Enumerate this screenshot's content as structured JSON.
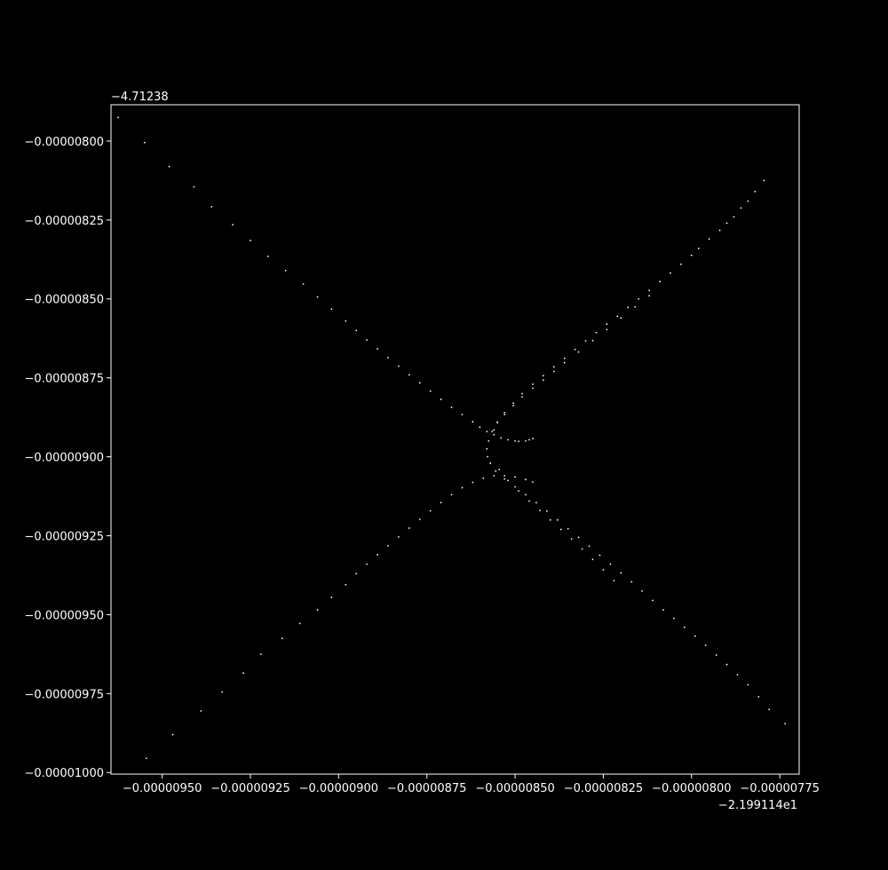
{
  "chart_data": {
    "type": "scatter",
    "title": "",
    "xlabel": "",
    "ylabel": "",
    "background_color": "#000000",
    "foreground_color": "#ffffff",
    "point_color": "#ffffff",
    "grid": false,
    "x_offset_label": "−2.199114e1",
    "y_offset_label": "−4.71238",
    "xlim": [
      -9.645e-06,
      -7.695e-06
    ],
    "ylim": [
      -1.0005e-05,
      -7.885e-06
    ],
    "x_ticks": [
      {
        "value": -9.5e-06,
        "label": "−0.00000950"
      },
      {
        "value": -9.25e-06,
        "label": "−0.00000925"
      },
      {
        "value": -9e-06,
        "label": "−0.00000900"
      },
      {
        "value": -8.75e-06,
        "label": "−0.00000875"
      },
      {
        "value": -8.5e-06,
        "label": "−0.00000850"
      },
      {
        "value": -8.25e-06,
        "label": "−0.00000825"
      },
      {
        "value": -8e-06,
        "label": "−0.00000800"
      },
      {
        "value": -7.75e-06,
        "label": "−0.00000775"
      }
    ],
    "y_ticks": [
      {
        "value": -8e-06,
        "label": "−0.00000800"
      },
      {
        "value": -8.25e-06,
        "label": "−0.00000825"
      },
      {
        "value": -8.5e-06,
        "label": "−0.00000850"
      },
      {
        "value": -8.75e-06,
        "label": "−0.00000875"
      },
      {
        "value": -9e-06,
        "label": "−0.00000900"
      },
      {
        "value": -9.25e-06,
        "label": "−0.00000925"
      },
      {
        "value": -9.5e-06,
        "label": "−0.00000950"
      },
      {
        "value": -9.75e-06,
        "label": "−0.00000975"
      },
      {
        "value": -1e-05,
        "label": "−0.00001000"
      }
    ],
    "series": [
      {
        "description": "upper-left branch",
        "points": [
          [
            -9.625e-06,
            -7.925e-06
          ],
          [
            -9.55e-06,
            -8.005e-06
          ],
          [
            -9.48e-06,
            -8.081e-06
          ],
          [
            -9.41e-06,
            -8.145e-06
          ],
          [
            -9.36e-06,
            -8.208e-06
          ],
          [
            -9.3e-06,
            -8.265e-06
          ],
          [
            -9.25e-06,
            -8.315e-06
          ],
          [
            -9.2e-06,
            -8.365e-06
          ],
          [
            -9.15e-06,
            -8.41e-06
          ],
          [
            -9.1e-06,
            -8.453e-06
          ],
          [
            -9.06e-06,
            -8.494e-06
          ],
          [
            -9.02e-06,
            -8.532e-06
          ],
          [
            -8.98e-06,
            -8.57e-06
          ],
          [
            -8.95e-06,
            -8.6e-06
          ],
          [
            -8.92e-06,
            -8.63e-06
          ],
          [
            -8.89e-06,
            -8.658e-06
          ],
          [
            -8.86e-06,
            -8.686e-06
          ],
          [
            -8.83e-06,
            -8.713e-06
          ],
          [
            -8.8e-06,
            -8.74e-06
          ],
          [
            -8.77e-06,
            -8.766e-06
          ],
          [
            -8.74e-06,
            -8.792e-06
          ],
          [
            -8.71e-06,
            -8.818e-06
          ],
          [
            -8.68e-06,
            -8.843e-06
          ],
          [
            -8.65e-06,
            -8.866e-06
          ],
          [
            -8.62e-06,
            -8.889e-06
          ],
          [
            -8.6e-06,
            -8.906e-06
          ],
          [
            -8.58e-06,
            -8.92e-06
          ],
          [
            -8.56e-06,
            -8.93e-06
          ],
          [
            -8.54e-06,
            -8.94e-06
          ],
          [
            -8.52e-06,
            -8.946e-06
          ],
          [
            -8.5e-06,
            -8.95e-06
          ],
          [
            -8.49e-06,
            -8.951e-06
          ],
          [
            -8.47e-06,
            -8.95e-06
          ],
          [
            -8.46e-06,
            -8.946e-06
          ],
          [
            -8.45e-06,
            -8.942e-06
          ]
        ]
      },
      {
        "description": "upper-right branch",
        "points": [
          [
            -7.795e-06,
            -8.125e-06
          ],
          [
            -7.82e-06,
            -8.16e-06
          ],
          [
            -7.84e-06,
            -8.19e-06
          ],
          [
            -7.86e-06,
            -8.212e-06
          ],
          [
            -7.88e-06,
            -8.24e-06
          ],
          [
            -7.9e-06,
            -8.26e-06
          ],
          [
            -7.92e-06,
            -8.283e-06
          ],
          [
            -7.95e-06,
            -8.31e-06
          ],
          [
            -7.98e-06,
            -8.34e-06
          ],
          [
            -8e-06,
            -8.362e-06
          ],
          [
            -8.03e-06,
            -8.39e-06
          ],
          [
            -8.06e-06,
            -8.418e-06
          ],
          [
            -8.09e-06,
            -8.445e-06
          ],
          [
            -8.12e-06,
            -8.473e-06
          ],
          [
            -8.15e-06,
            -8.5e-06
          ],
          [
            -8.18e-06,
            -8.527e-06
          ],
          [
            -8.21e-06,
            -8.555e-06
          ],
          [
            -8.24e-06,
            -8.58e-06
          ],
          [
            -8.27e-06,
            -8.607e-06
          ],
          [
            -8.3e-06,
            -8.633e-06
          ],
          [
            -8.33e-06,
            -8.66e-06
          ],
          [
            -8.36e-06,
            -8.688e-06
          ],
          [
            -8.39e-06,
            -8.715e-06
          ],
          [
            -8.42e-06,
            -8.743e-06
          ],
          [
            -8.45e-06,
            -8.77e-06
          ],
          [
            -8.48e-06,
            -8.8e-06
          ],
          [
            -8.505e-06,
            -8.83e-06
          ],
          [
            -8.53e-06,
            -8.86e-06
          ],
          [
            -8.55e-06,
            -8.89e-06
          ],
          [
            -8.565e-06,
            -8.92e-06
          ],
          [
            -8.575e-06,
            -8.95e-06
          ],
          [
            -8.58e-06,
            -8.975e-06
          ],
          [
            -8.578e-06,
            -9e-06
          ],
          [
            -8.57e-06,
            -9.02e-06
          ]
        ]
      },
      {
        "description": "upper-right inner branch",
        "points": [
          [
            -8.12e-06,
            -8.49e-06
          ],
          [
            -8.16e-06,
            -8.525e-06
          ],
          [
            -8.2e-06,
            -8.56e-06
          ],
          [
            -8.24e-06,
            -8.597e-06
          ],
          [
            -8.28e-06,
            -8.632e-06
          ],
          [
            -8.32e-06,
            -8.668e-06
          ],
          [
            -8.36e-06,
            -8.702e-06
          ],
          [
            -8.39e-06,
            -8.73e-06
          ],
          [
            -8.42e-06,
            -8.757e-06
          ],
          [
            -8.45e-06,
            -8.783e-06
          ],
          [
            -8.48e-06,
            -8.81e-06
          ],
          [
            -8.505e-06,
            -8.838e-06
          ],
          [
            -8.53e-06,
            -8.866e-06
          ],
          [
            -8.55e-06,
            -8.892e-06
          ],
          [
            -8.56e-06,
            -8.915e-06
          ]
        ]
      },
      {
        "description": "lower-left branch",
        "points": [
          [
            -9.545e-06,
            -9.955e-06
          ],
          [
            -9.47e-06,
            -9.88e-06
          ],
          [
            -9.39e-06,
            -9.805e-06
          ],
          [
            -9.33e-06,
            -9.745e-06
          ],
          [
            -9.27e-06,
            -9.685e-06
          ],
          [
            -9.22e-06,
            -9.625e-06
          ],
          [
            -9.16e-06,
            -9.575e-06
          ],
          [
            -9.11e-06,
            -9.528e-06
          ],
          [
            -9.06e-06,
            -9.485e-06
          ],
          [
            -9.02e-06,
            -9.445e-06
          ],
          [
            -8.98e-06,
            -9.405e-06
          ],
          [
            -8.95e-06,
            -9.37e-06
          ],
          [
            -8.92e-06,
            -9.34e-06
          ],
          [
            -8.89e-06,
            -9.31e-06
          ],
          [
            -8.86e-06,
            -9.282e-06
          ],
          [
            -8.83e-06,
            -9.254e-06
          ],
          [
            -8.8e-06,
            -9.226e-06
          ],
          [
            -8.77e-06,
            -9.198e-06
          ],
          [
            -8.74e-06,
            -9.171e-06
          ],
          [
            -8.71e-06,
            -9.145e-06
          ],
          [
            -8.68e-06,
            -9.12e-06
          ],
          [
            -8.65e-06,
            -9.098e-06
          ],
          [
            -8.62e-06,
            -9.081e-06
          ],
          [
            -8.59e-06,
            -9.068e-06
          ],
          [
            -8.56e-06,
            -9.06e-06
          ],
          [
            -8.53e-06,
            -9.06e-06
          ],
          [
            -8.5e-06,
            -9.064e-06
          ],
          [
            -8.47e-06,
            -9.072e-06
          ],
          [
            -8.45e-06,
            -9.08e-06
          ]
        ]
      },
      {
        "description": "lower-right branch",
        "points": [
          [
            -8.57e-06,
            -9.02e-06
          ],
          [
            -8.555e-06,
            -9.045e-06
          ],
          [
            -8.53e-06,
            -9.07e-06
          ],
          [
            -8.5e-06,
            -9.095e-06
          ],
          [
            -8.47e-06,
            -9.12e-06
          ],
          [
            -8.44e-06,
            -9.145e-06
          ],
          [
            -8.41e-06,
            -9.172e-06
          ],
          [
            -8.38e-06,
            -9.2e-06
          ],
          [
            -8.35e-06,
            -9.228e-06
          ],
          [
            -8.32e-06,
            -9.255e-06
          ],
          [
            -8.29e-06,
            -9.283e-06
          ],
          [
            -8.26e-06,
            -9.312e-06
          ],
          [
            -8.23e-06,
            -9.34e-06
          ],
          [
            -8.2e-06,
            -9.368e-06
          ],
          [
            -8.17e-06,
            -9.396e-06
          ],
          [
            -8.14e-06,
            -9.425e-06
          ],
          [
            -8.11e-06,
            -9.455e-06
          ],
          [
            -8.08e-06,
            -9.485e-06
          ],
          [
            -8.05e-06,
            -9.512e-06
          ],
          [
            -8.02e-06,
            -9.54e-06
          ],
          [
            -7.99e-06,
            -9.568e-06
          ],
          [
            -7.96e-06,
            -9.597e-06
          ],
          [
            -7.93e-06,
            -9.628e-06
          ],
          [
            -7.9e-06,
            -9.658e-06
          ],
          [
            -7.87e-06,
            -9.69e-06
          ],
          [
            -7.84e-06,
            -9.722e-06
          ],
          [
            -7.81e-06,
            -9.76e-06
          ],
          [
            -7.78e-06,
            -9.8e-06
          ],
          [
            -7.735e-06,
            -9.845e-06
          ]
        ]
      },
      {
        "description": "lower-right inner branch",
        "points": [
          [
            -8.545e-06,
            -9.04e-06
          ],
          [
            -8.52e-06,
            -9.075e-06
          ],
          [
            -8.49e-06,
            -9.108e-06
          ],
          [
            -8.46e-06,
            -9.14e-06
          ],
          [
            -8.43e-06,
            -9.17e-06
          ],
          [
            -8.4e-06,
            -9.2e-06
          ],
          [
            -8.37e-06,
            -9.23e-06
          ],
          [
            -8.34e-06,
            -9.26e-06
          ],
          [
            -8.31e-06,
            -9.292e-06
          ],
          [
            -8.28e-06,
            -9.325e-06
          ],
          [
            -8.25e-06,
            -9.358e-06
          ],
          [
            -8.22e-06,
            -9.392e-06
          ]
        ]
      }
    ]
  }
}
